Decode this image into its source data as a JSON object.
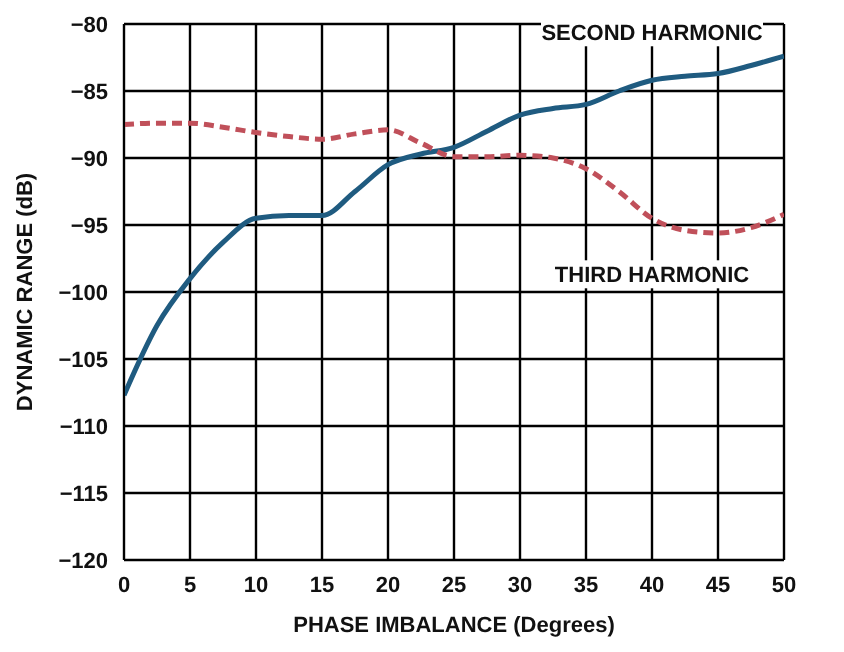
{
  "chart_data": {
    "type": "line",
    "xlabel": "PHASE IMBALANCE (Degrees)",
    "ylabel": "DYNAMIC RANGE (dB)",
    "x": [
      0,
      2.5,
      5,
      7.5,
      10,
      12.5,
      15,
      17.5,
      20,
      22.5,
      25,
      27.5,
      30,
      32.5,
      35,
      37.5,
      40,
      42.5,
      45,
      47.5,
      50
    ],
    "series": [
      {
        "name": "SECOND HARMONIC",
        "color": "#1f5b80",
        "line_style": "solid",
        "values": [
          -107.7,
          -102.5,
          -99,
          -96.3,
          -94.5,
          -94.3,
          -94.3,
          -92.5,
          -90.5,
          -89.7,
          -89.2,
          -88,
          -86.8,
          -86.3,
          -86,
          -85,
          -84.2,
          -83.9,
          -83.7,
          -83.1,
          -82.4
        ]
      },
      {
        "name": "THIRD HARMONIC",
        "color": "#c0505a",
        "line_style": "dashed",
        "values": [
          -87.5,
          -87.4,
          -87.4,
          -87.7,
          -88.1,
          -88.4,
          -88.6,
          -88.2,
          -87.9,
          -88.9,
          -89.9,
          -89.9,
          -89.8,
          -90,
          -90.8,
          -92.5,
          -94.5,
          -95.4,
          -95.6,
          -95.2,
          -94.2
        ]
      }
    ],
    "xlim": [
      0,
      50
    ],
    "xticks": [
      0,
      5,
      10,
      15,
      20,
      25,
      30,
      35,
      40,
      45,
      50
    ],
    "ylim": [
      -120,
      -80
    ],
    "yticks": [
      -120,
      -115,
      -110,
      -105,
      -100,
      -95,
      -90,
      -85,
      -80
    ],
    "grid": true,
    "legend": false,
    "marker": "none"
  }
}
